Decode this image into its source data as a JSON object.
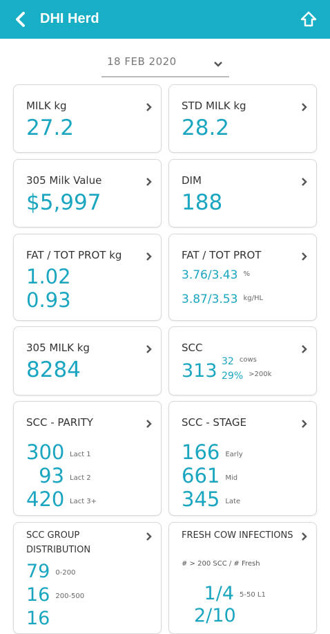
{
  "header": {
    "title": "DHI Herd"
  },
  "date": "18 FEB 2020",
  "cards": [
    {
      "title": "MILK kg",
      "rows": [
        {
          "value": "27.2"
        }
      ]
    },
    {
      "title": "STD MILK kg",
      "rows": [
        {
          "value": "28.2"
        }
      ]
    },
    {
      "title": "305 Milk Value",
      "rows": [
        {
          "value": "$5,997"
        }
      ]
    },
    {
      "title": "DIM",
      "rows": [
        {
          "value": "188"
        }
      ]
    },
    {
      "title": "FAT / TOT PROT kg",
      "rows": [
        {
          "value": "1.02"
        },
        {
          "value": "0.93"
        }
      ]
    },
    {
      "title": "FAT / TOT PROT",
      "rows": [
        {
          "value": "3.76/3.43",
          "unit": "%"
        },
        {
          "value": "3.87/3.53",
          "unit": "kg/HL"
        }
      ]
    },
    {
      "title": "305 MILK kg",
      "rows": [
        {
          "value": "8284"
        }
      ]
    },
    {
      "title": "SCC",
      "main": "313",
      "rows": [
        {
          "value": "32",
          "unit": "cows"
        },
        {
          "value": "29%",
          "unit": ">200k"
        }
      ]
    },
    {
      "title": "SCC - PARITY",
      "rows": [
        {
          "value": "300",
          "unit": "Lact 1"
        },
        {
          "value": "93",
          "unit": "Lact 2"
        },
        {
          "value": "420",
          "unit": "Lact 3+"
        }
      ]
    },
    {
      "title": "SCC - STAGE",
      "rows": [
        {
          "value": "166",
          "unit": "Early"
        },
        {
          "value": "661",
          "unit": "Mid"
        },
        {
          "value": "345",
          "unit": "Late"
        }
      ]
    },
    {
      "title": "SCC GROUP DISTRIBUTION",
      "rows": [
        {
          "value": "79",
          "unit": "0-200"
        },
        {
          "value": "16",
          "unit": "200-500"
        },
        {
          "value": "16"
        }
      ]
    },
    {
      "title": "FRESH COW INFECTIONS",
      "note": "# > 200 SCC / # Fresh",
      "rows": [
        {
          "value": "1/4",
          "unit": "5-50 L1"
        },
        {
          "value": "2/10"
        }
      ]
    }
  ]
}
